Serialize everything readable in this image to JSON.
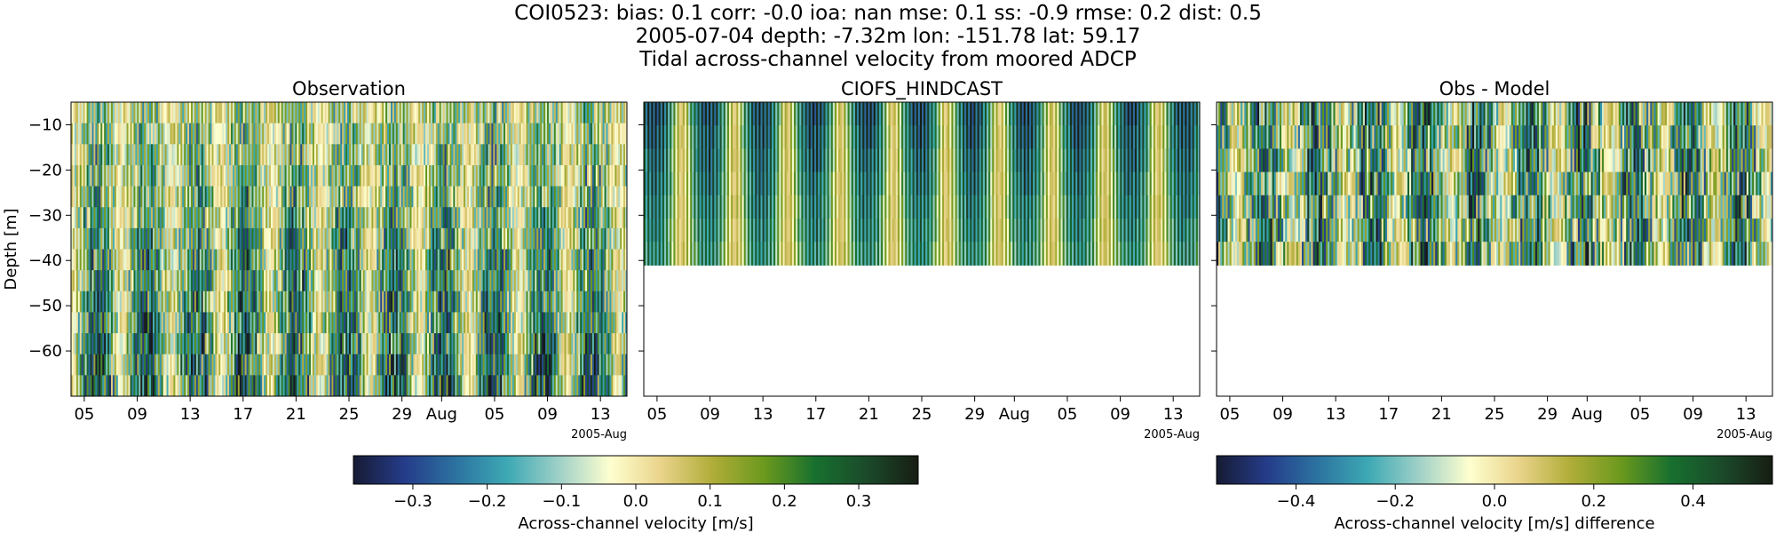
{
  "titles": {
    "line1": "COI0523: bias: 0.1  corr: -0.0  ioa: nan  mse: 0.1  ss: -0.9  rmse: 0.2  dist: 0.5",
    "line2": "2005-07-04 depth: -7.32m lon: -151.78 lat: 59.17",
    "line3": "Tidal across-channel velocity from moored ADCP"
  },
  "chart_data": [
    {
      "type": "heatmap",
      "title": "Observation",
      "ylabel": "Depth [m]",
      "ylim": [
        -70,
        -5
      ],
      "yticks": [
        -10,
        -20,
        -30,
        -40,
        -50,
        -60
      ],
      "ytick_labels": [
        "−10",
        "−20",
        "−30",
        "−40",
        "−50",
        "−60"
      ],
      "xlim": [
        "2005-07-04",
        "2005-08-15"
      ],
      "x_start": "2005-07-04",
      "x_end": "2005-08-15",
      "xticks": [
        "2005-07-05",
        "2005-07-09",
        "2005-07-13",
        "2005-07-17",
        "2005-07-21",
        "2005-07-25",
        "2005-07-29",
        "2005-08-01",
        "2005-08-05",
        "2005-08-09",
        "2005-08-13"
      ],
      "xtick_labels": [
        "05",
        "09",
        "13",
        "17",
        "21",
        "25",
        "29",
        "Aug",
        "05",
        "09",
        "13"
      ],
      "x_offset_label": "2005-Aug",
      "data_depth_range": [
        -70,
        -5
      ],
      "colormap": "delta",
      "vlim": [
        -0.38,
        0.38
      ]
    },
    {
      "type": "heatmap",
      "title": "CIOFS_HINDCAST",
      "ylim": [
        -70,
        -5
      ],
      "xlim": [
        "2005-07-04",
        "2005-08-15"
      ],
      "x_start": "2005-07-04",
      "x_end": "2005-08-15",
      "xticks": [
        "2005-07-05",
        "2005-07-09",
        "2005-07-13",
        "2005-07-17",
        "2005-07-21",
        "2005-07-25",
        "2005-07-29",
        "2005-08-01",
        "2005-08-05",
        "2005-08-09",
        "2005-08-13"
      ],
      "xtick_labels": [
        "05",
        "09",
        "13",
        "17",
        "21",
        "25",
        "29",
        "Aug",
        "05",
        "09",
        "13"
      ],
      "x_offset_label": "2005-Aug",
      "data_depth_range": [
        -41,
        -5
      ],
      "colormap": "delta",
      "vlim": [
        -0.38,
        0.38
      ]
    },
    {
      "type": "heatmap",
      "title": "Obs - Model",
      "ylim": [
        -70,
        -5
      ],
      "xlim": [
        "2005-07-04",
        "2005-08-15"
      ],
      "x_start": "2005-07-04",
      "x_end": "2005-08-15",
      "xticks": [
        "2005-07-05",
        "2005-07-09",
        "2005-07-13",
        "2005-07-17",
        "2005-07-21",
        "2005-07-25",
        "2005-07-29",
        "2005-08-01",
        "2005-08-05",
        "2005-08-09",
        "2005-08-13"
      ],
      "xtick_labels": [
        "05",
        "09",
        "13",
        "17",
        "21",
        "25",
        "29",
        "Aug",
        "05",
        "09",
        "13"
      ],
      "x_offset_label": "2005-Aug",
      "data_depth_range": [
        -41,
        -5
      ],
      "colormap": "delta",
      "vlim": [
        -0.56,
        0.56
      ]
    }
  ],
  "colorbars": [
    {
      "label": "Across-channel velocity [m/s]",
      "vlim": [
        -0.38,
        0.38
      ],
      "ticks": [
        -0.3,
        -0.2,
        -0.1,
        0.0,
        0.1,
        0.2,
        0.3
      ],
      "tick_labels": [
        "−0.3",
        "−0.2",
        "−0.1",
        "0.0",
        "0.1",
        "0.2",
        "0.3"
      ]
    },
    {
      "label": "Across-channel velocity [m/s] difference",
      "vlim": [
        -0.56,
        0.56
      ],
      "ticks": [
        -0.4,
        -0.2,
        0.0,
        0.2,
        0.4
      ],
      "tick_labels": [
        "−0.4",
        "−0.2",
        "0.0",
        "0.2",
        "0.4"
      ]
    }
  ],
  "colormap_stops": [
    "#161b33",
    "#253c8a",
    "#2c73a0",
    "#3da9b4",
    "#9fd0c7",
    "#feffcf",
    "#e9d38a",
    "#b0ad39",
    "#6b991d",
    "#17702f",
    "#1b4a2a",
    "#171d13"
  ]
}
